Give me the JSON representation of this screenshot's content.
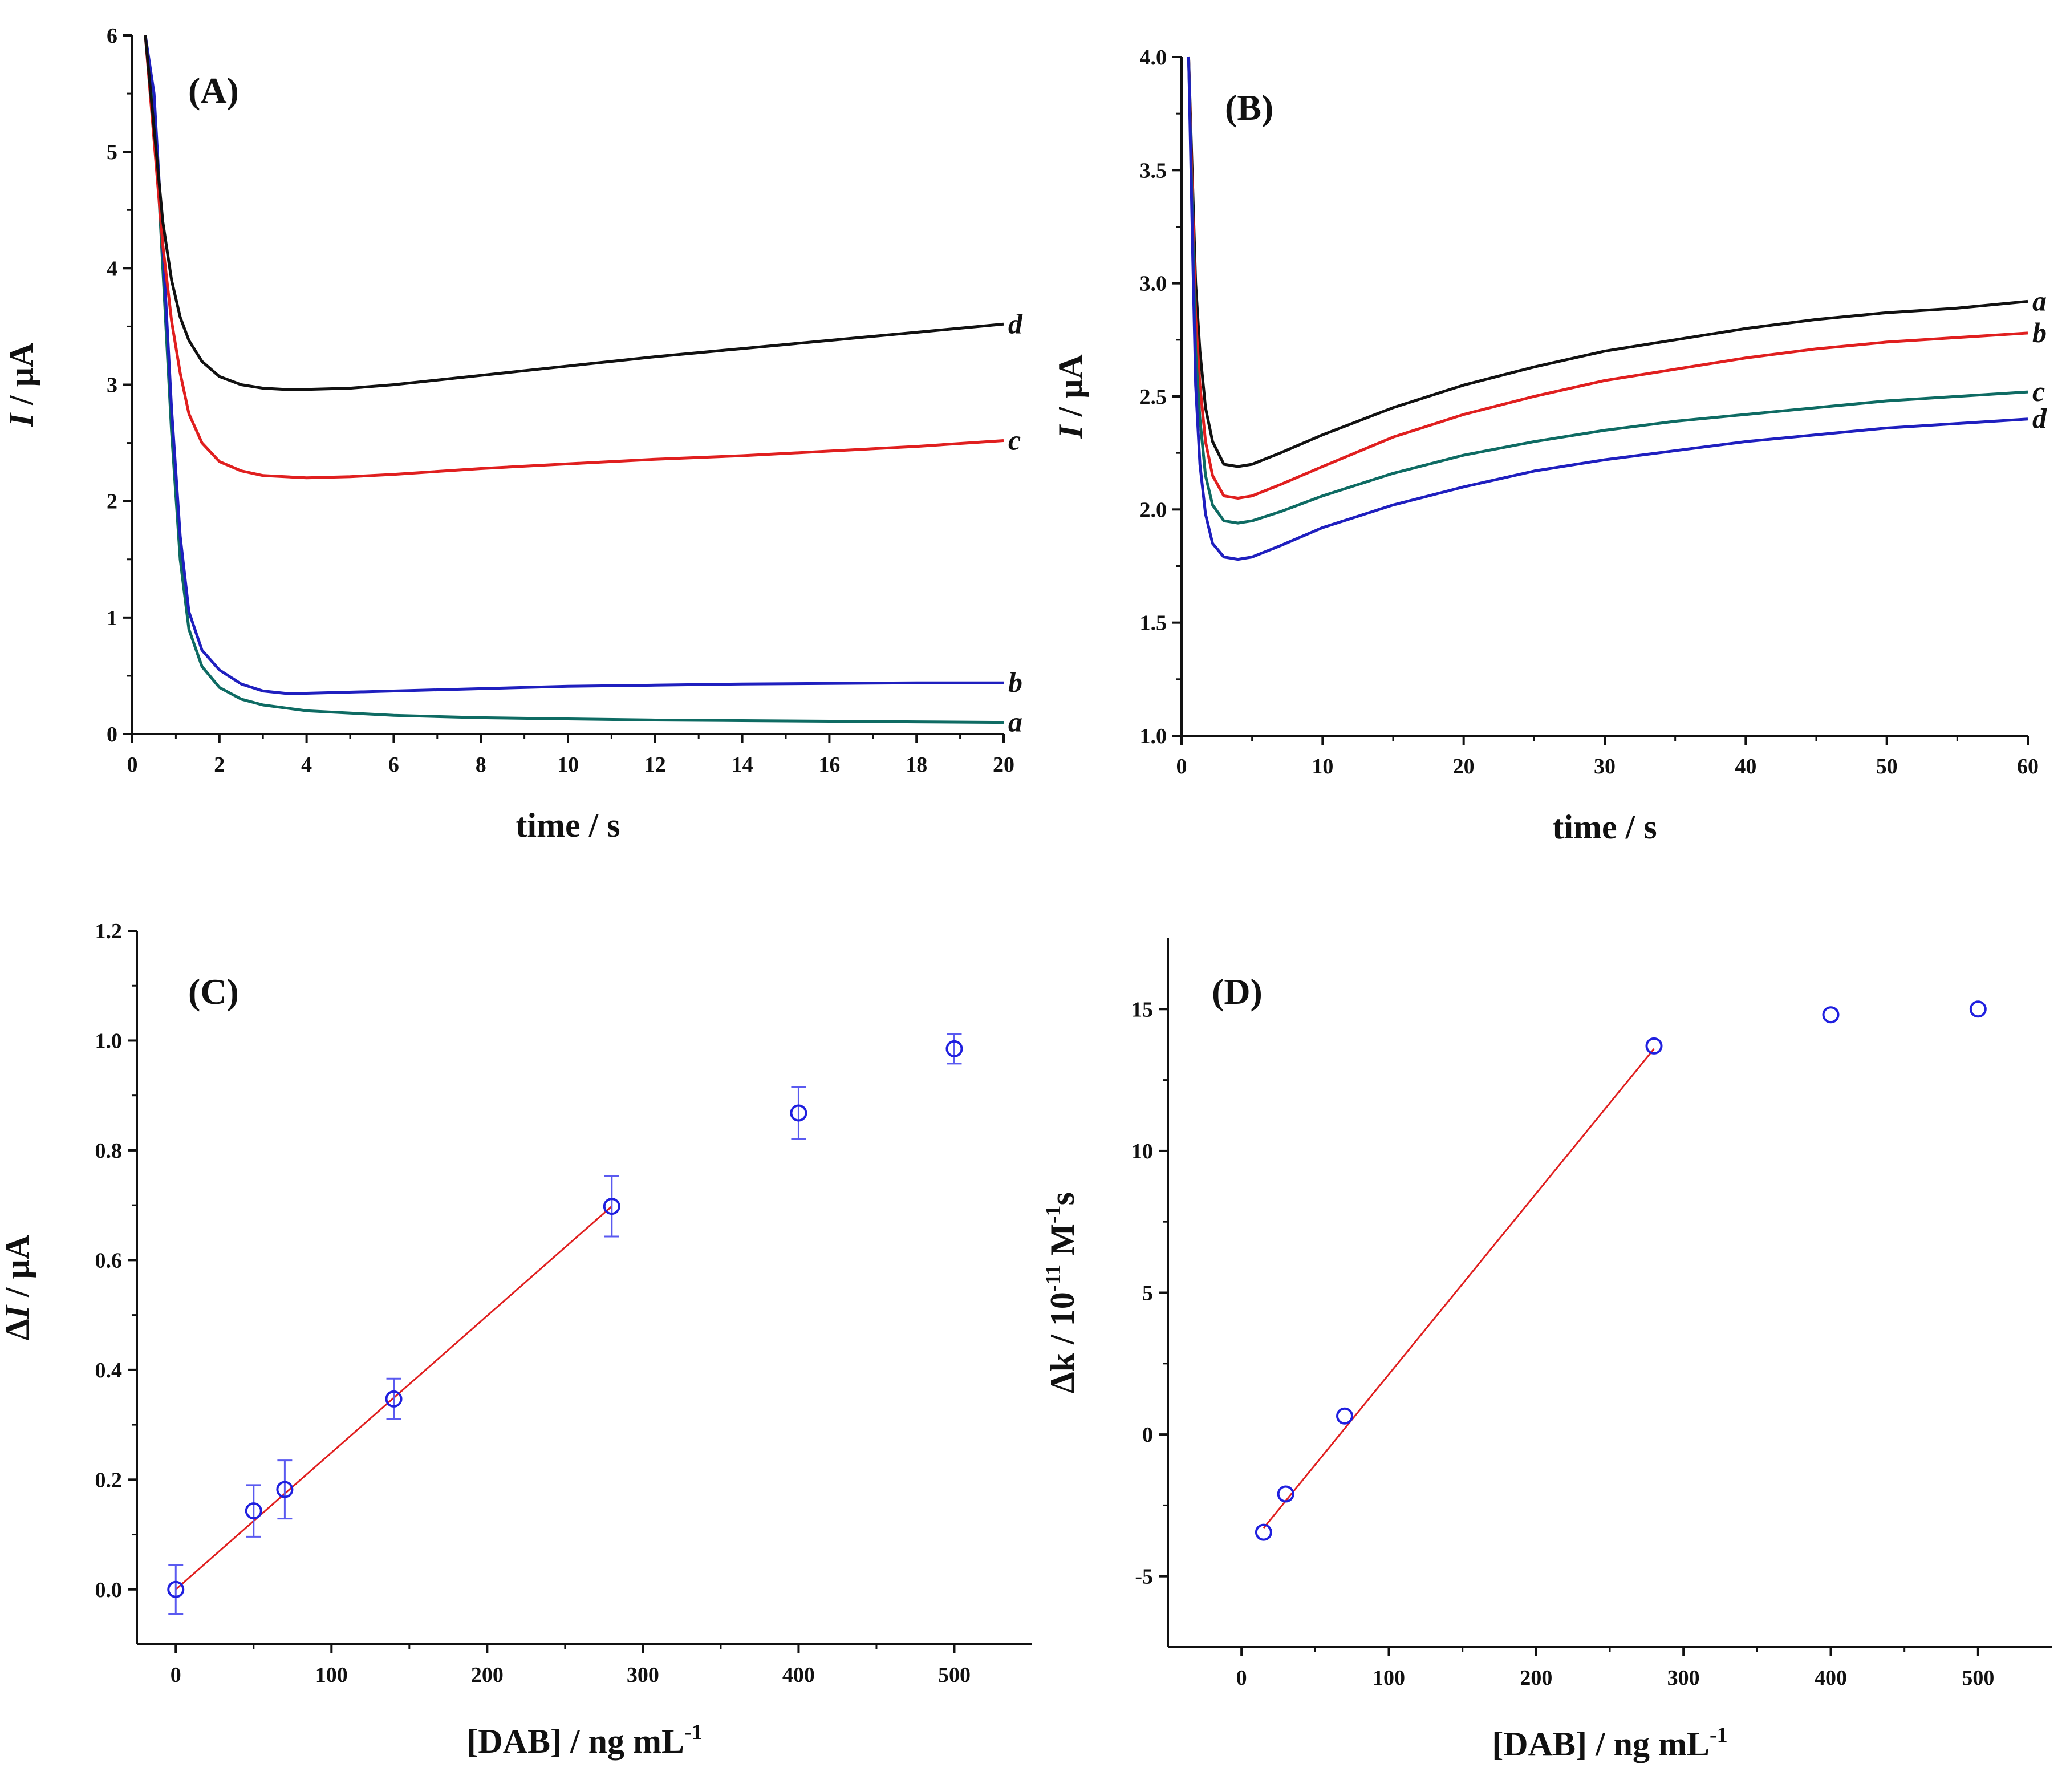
{
  "chart_data": [
    {
      "panel": "(A)",
      "type": "line",
      "xlabel": "time / s",
      "ylabel_parts": [
        "I",
        " / μA"
      ],
      "xlim": [
        0,
        20
      ],
      "ylim": [
        0,
        6
      ],
      "xticks": [
        0,
        2,
        4,
        6,
        8,
        10,
        12,
        14,
        16,
        18,
        20
      ],
      "yticks": [
        0,
        1,
        2,
        3,
        4,
        5,
        6
      ],
      "colors": {
        "a": "#0e6b63",
        "b": "#1f1fbf",
        "c": "#e01f1f",
        "d": "#111111"
      },
      "series": [
        {
          "name": "a",
          "x": [
            0.3,
            0.5,
            0.7,
            0.9,
            1.1,
            1.3,
            1.6,
            2,
            2.5,
            3,
            4,
            6,
            8,
            10,
            12,
            14,
            16,
            18,
            20
          ],
          "y": [
            6,
            5.4,
            4,
            2.6,
            1.5,
            0.9,
            0.58,
            0.4,
            0.3,
            0.25,
            0.2,
            0.16,
            0.14,
            0.13,
            0.12,
            0.115,
            0.11,
            0.105,
            0.1
          ]
        },
        {
          "name": "b",
          "x": [
            0.3,
            0.5,
            0.7,
            0.9,
            1.1,
            1.3,
            1.6,
            2,
            2.5,
            3,
            3.5,
            4,
            6,
            8,
            10,
            12,
            14,
            16,
            18,
            20
          ],
          "y": [
            6,
            5.5,
            4.2,
            2.8,
            1.7,
            1.05,
            0.72,
            0.55,
            0.43,
            0.37,
            0.35,
            0.35,
            0.37,
            0.39,
            0.41,
            0.42,
            0.43,
            0.435,
            0.44,
            0.44
          ]
        },
        {
          "name": "c",
          "x": [
            0.3,
            0.5,
            0.7,
            0.9,
            1.1,
            1.3,
            1.6,
            2,
            2.5,
            3,
            4,
            5,
            6,
            8,
            10,
            12,
            14,
            16,
            18,
            20
          ],
          "y": [
            6,
            5.1,
            4.2,
            3.55,
            3.1,
            2.75,
            2.5,
            2.34,
            2.26,
            2.22,
            2.2,
            2.21,
            2.23,
            2.28,
            2.32,
            2.36,
            2.39,
            2.43,
            2.47,
            2.52
          ]
        },
        {
          "name": "d",
          "x": [
            0.3,
            0.5,
            0.7,
            0.9,
            1.1,
            1.3,
            1.6,
            2,
            2.5,
            3,
            3.5,
            4,
            5,
            6,
            8,
            10,
            12,
            14,
            16,
            18,
            20
          ],
          "y": [
            6,
            5.2,
            4.4,
            3.9,
            3.58,
            3.38,
            3.2,
            3.07,
            3.0,
            2.97,
            2.96,
            2.96,
            2.97,
            3.0,
            3.08,
            3.16,
            3.24,
            3.31,
            3.38,
            3.45,
            3.52
          ]
        }
      ]
    },
    {
      "panel": "(B)",
      "type": "line",
      "xlabel": "time / s",
      "ylabel_parts": [
        "I",
        " / μA"
      ],
      "xlim": [
        0,
        60
      ],
      "ylim": [
        1.0,
        4.0
      ],
      "xticks": [
        0,
        10,
        20,
        30,
        40,
        50,
        60
      ],
      "yticks": [
        "1.0",
        "1.5",
        "2.0",
        "2.5",
        "3.0",
        "3.5",
        "4.0"
      ],
      "colors": {
        "a": "#111111",
        "b": "#e01f1f",
        "c": "#0e6b63",
        "d": "#1f1fbf"
      },
      "series": [
        {
          "name": "a",
          "x": [
            0.5,
            0.8,
            1,
            1.3,
            1.7,
            2.2,
            3,
            4,
            5,
            7,
            10,
            15,
            20,
            25,
            30,
            35,
            40,
            45,
            50,
            55,
            60
          ],
          "y": [
            4.0,
            3.4,
            3.0,
            2.7,
            2.45,
            2.3,
            2.2,
            2.19,
            2.2,
            2.25,
            2.33,
            2.45,
            2.55,
            2.63,
            2.7,
            2.75,
            2.8,
            2.84,
            2.87,
            2.89,
            2.92
          ]
        },
        {
          "name": "b",
          "x": [
            0.5,
            0.8,
            1,
            1.3,
            1.7,
            2.2,
            3,
            4,
            5,
            7,
            10,
            15,
            20,
            25,
            30,
            35,
            40,
            45,
            50,
            55,
            60
          ],
          "y": [
            4.0,
            3.3,
            2.85,
            2.55,
            2.3,
            2.15,
            2.06,
            2.05,
            2.06,
            2.11,
            2.19,
            2.32,
            2.42,
            2.5,
            2.57,
            2.62,
            2.67,
            2.71,
            2.74,
            2.76,
            2.78
          ]
        },
        {
          "name": "c",
          "x": [
            0.5,
            0.8,
            1,
            1.3,
            1.7,
            2.2,
            3,
            4,
            5,
            7,
            10,
            15,
            20,
            25,
            30,
            35,
            40,
            45,
            50,
            55,
            60
          ],
          "y": [
            4.0,
            3.2,
            2.7,
            2.4,
            2.15,
            2.02,
            1.95,
            1.94,
            1.95,
            1.99,
            2.06,
            2.16,
            2.24,
            2.3,
            2.35,
            2.39,
            2.42,
            2.45,
            2.48,
            2.5,
            2.52
          ]
        },
        {
          "name": "d",
          "x": [
            0.5,
            0.8,
            1,
            1.3,
            1.7,
            2.2,
            3,
            4,
            5,
            7,
            10,
            15,
            20,
            25,
            30,
            35,
            40,
            45,
            50,
            55,
            60
          ],
          "y": [
            4.0,
            3.1,
            2.55,
            2.2,
            1.98,
            1.85,
            1.79,
            1.78,
            1.79,
            1.84,
            1.92,
            2.02,
            2.1,
            2.17,
            2.22,
            2.26,
            2.3,
            2.33,
            2.36,
            2.38,
            2.4
          ]
        }
      ]
    },
    {
      "panel": "(C)",
      "type": "scatter",
      "xlabel_parts": [
        "[DAB] / ng mL",
        "-1"
      ],
      "ylabel_parts": [
        "Δ",
        "I",
        " / μA"
      ],
      "xlim": [
        -25,
        550
      ],
      "ylim": [
        -0.1,
        1.2
      ],
      "xticks": [
        0,
        100,
        200,
        300,
        400,
        500
      ],
      "yticks": [
        "0.0",
        "0.2",
        "0.4",
        "0.6",
        "0.8",
        "1.0",
        "1.2"
      ],
      "marker_color": "#1f1fdf",
      "fit_color": "#e01f1f",
      "points": {
        "x": [
          0,
          50,
          70,
          140,
          280,
          400,
          500
        ],
        "y": [
          0.0,
          0.143,
          0.182,
          0.347,
          0.698,
          0.868,
          0.985
        ],
        "err": [
          0.045,
          0.047,
          0.053,
          0.037,
          0.055,
          0.047,
          0.027
        ]
      },
      "fit": {
        "x": [
          0,
          280
        ],
        "y": [
          0.0,
          0.698
        ]
      }
    },
    {
      "panel": "(D)",
      "type": "scatter",
      "xlabel_parts": [
        "[DAB] / ng mL",
        "-1"
      ],
      "ylabel_parts": [
        "Δk / 10",
        "-11",
        " M",
        "-1",
        "s"
      ],
      "xlim": [
        -50,
        550
      ],
      "ylim": [
        -7.5,
        17.5
      ],
      "xticks": [
        0,
        100,
        200,
        300,
        400,
        500
      ],
      "yticks": [
        "-5",
        "0",
        "5",
        "10",
        "15"
      ],
      "marker_color": "#1f1fdf",
      "fit_color": "#e01f1f",
      "points": {
        "x": [
          15,
          30,
          70,
          280,
          400,
          500
        ],
        "y": [
          -3.45,
          -2.1,
          0.65,
          13.7,
          14.8,
          15.0
        ]
      },
      "fit": {
        "x": [
          15,
          280
        ],
        "y": [
          -3.3,
          13.6
        ]
      }
    }
  ]
}
